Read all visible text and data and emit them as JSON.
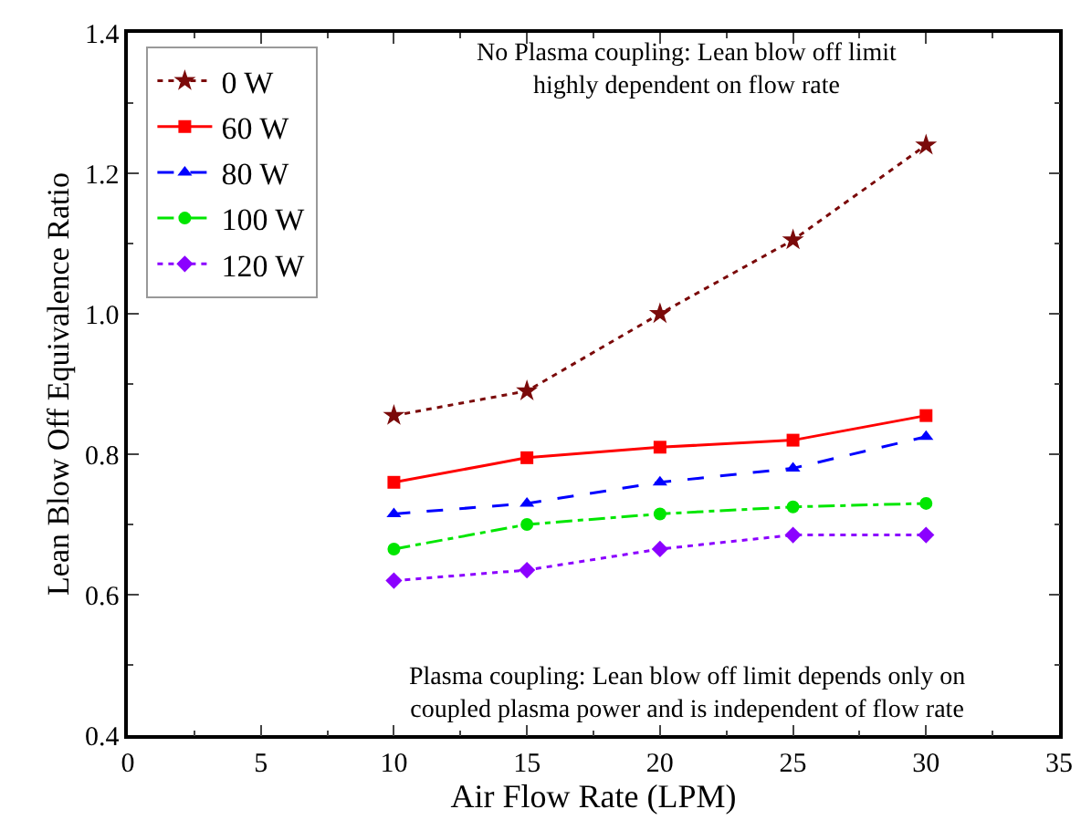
{
  "chart_data": {
    "type": "line",
    "xlabel": "Air Flow Rate (LPM)",
    "ylabel": "Lean Blow Off Equivalence Ratio",
    "x": [
      10,
      15,
      20,
      25,
      30
    ],
    "series": [
      {
        "name": "0 W",
        "color": "#7b0a0a",
        "marker": "star",
        "line_style": "dotted",
        "values": [
          0.855,
          0.89,
          1.0,
          1.105,
          1.24
        ]
      },
      {
        "name": "60 W",
        "color": "#ff0000",
        "marker": "square",
        "line_style": "solid",
        "values": [
          0.76,
          0.795,
          0.81,
          0.82,
          0.855
        ]
      },
      {
        "name": "80 W",
        "color": "#0000ff",
        "marker": "triangle",
        "line_style": "dashed",
        "values": [
          0.715,
          0.73,
          0.76,
          0.78,
          0.825
        ]
      },
      {
        "name": "100 W",
        "color": "#00e600",
        "marker": "circle",
        "line_style": "dashdot",
        "values": [
          0.665,
          0.7,
          0.715,
          0.725,
          0.73
        ]
      },
      {
        "name": "120 W",
        "color": "#8b00ff",
        "marker": "diamond",
        "line_style": "dotted",
        "values": [
          0.62,
          0.635,
          0.665,
          0.685,
          0.685
        ]
      }
    ],
    "xlim": [
      0,
      35
    ],
    "xticks": [
      0,
      5,
      10,
      15,
      20,
      25,
      30,
      35
    ],
    "ylim": [
      0.4,
      1.4
    ],
    "yticks": [
      0.4,
      0.6,
      0.8,
      {
        "value": 1,
        "label": "1.0"
      },
      1.2,
      1.4
    ],
    "grid": false,
    "legend": "top left",
    "annotations": [
      "No Plasma coupling: Lean blow off limit\nhighly dependent on flow rate",
      "Plasma coupling: Lean blow off limit depends only on\ncoupled plasma power and is independent of flow rate"
    ]
  }
}
